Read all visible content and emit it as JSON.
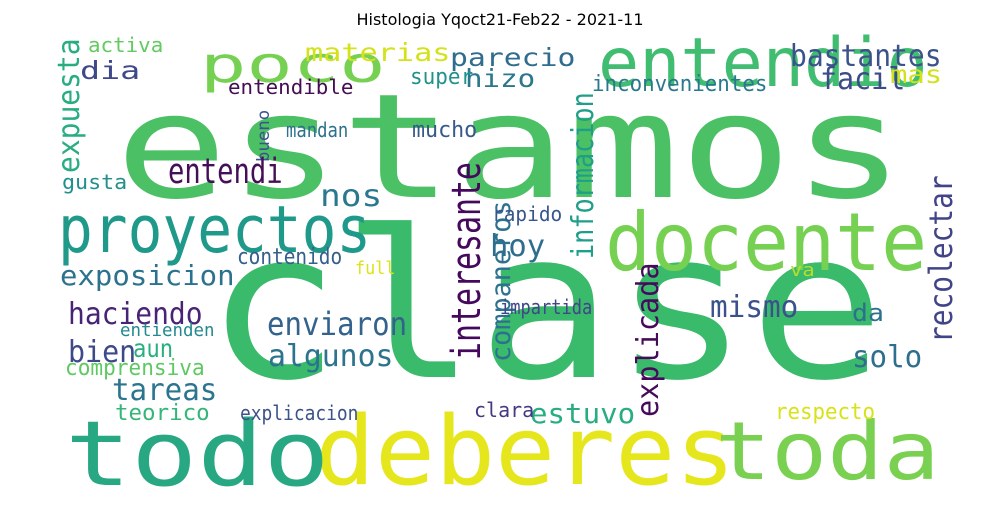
{
  "title": "Histologia Yqoct21-Feb22 - 2021-11",
  "words": [
    {
      "text": "estamos",
      "color": "#4cc064"
    },
    {
      "text": "clase",
      "color": "#3aba6b"
    },
    {
      "text": "deberes",
      "color": "#e6e61d"
    },
    {
      "text": "todo",
      "color": "#27a882"
    },
    {
      "text": "toda",
      "color": "#7ad151"
    },
    {
      "text": "docente",
      "color": "#76d153"
    },
    {
      "text": "proyectos",
      "color": "#1f9a8a"
    },
    {
      "text": "entendio",
      "color": "#40bd70"
    },
    {
      "text": "poco",
      "color": "#76d153"
    },
    {
      "text": "materias",
      "color": "#d4e21a"
    },
    {
      "text": "parecio",
      "color": "#2f6c8e"
    },
    {
      "text": "bastantes",
      "color": "#3b528b"
    },
    {
      "text": "dia",
      "color": "#3f4889"
    },
    {
      "text": "hizo",
      "color": "#2a778e"
    },
    {
      "text": "facil",
      "color": "#3e4a89"
    },
    {
      "text": "mas",
      "color": "#d2e21b"
    },
    {
      "text": "activa",
      "color": "#62cb5f"
    },
    {
      "text": "expuesta",
      "color": "#27ad81"
    },
    {
      "text": "entendible",
      "color": "#440d54"
    },
    {
      "text": "super",
      "color": "#21918c"
    },
    {
      "text": "inconvenientes",
      "color": "#2a788e"
    },
    {
      "text": "bueno",
      "color": "#3a538b"
    },
    {
      "text": "mandan",
      "color": "#2d718e"
    },
    {
      "text": "mucho",
      "color": "#38598c"
    },
    {
      "text": "informacion",
      "color": "#1f9e89"
    },
    {
      "text": "entendi",
      "color": "#440f56"
    },
    {
      "text": "gusta",
      "color": "#218f8d"
    },
    {
      "text": "nos",
      "color": "#2a788e"
    },
    {
      "text": "interesante",
      "color": "#46085c"
    },
    {
      "text": "companeros",
      "color": "#2c728e"
    },
    {
      "text": "recolectar",
      "color": "#414487"
    },
    {
      "text": "rapido",
      "color": "#39568c"
    },
    {
      "text": "hoy",
      "color": "#2e6d8e"
    },
    {
      "text": "exposicion",
      "color": "#2c728e"
    },
    {
      "text": "contenido",
      "color": "#35608d"
    },
    {
      "text": "full",
      "color": "#dde318"
    },
    {
      "text": "va",
      "color": "#b8de29"
    },
    {
      "text": "explicada",
      "color": "#460a5d"
    },
    {
      "text": "haciendo",
      "color": "#482475"
    },
    {
      "text": "enviaron",
      "color": "#33638d"
    },
    {
      "text": "mismo",
      "color": "#3b518b"
    },
    {
      "text": "impartida",
      "color": "#3f4788"
    },
    {
      "text": "da",
      "color": "#2d708e"
    },
    {
      "text": "entienden",
      "color": "#23898e"
    },
    {
      "text": "bien",
      "color": "#3e4989"
    },
    {
      "text": "aun",
      "color": "#29af7f"
    },
    {
      "text": "algunos",
      "color": "#2c738e"
    },
    {
      "text": "solo",
      "color": "#2e6e8e"
    },
    {
      "text": "comprensiva",
      "color": "#5ec962"
    },
    {
      "text": "tareas",
      "color": "#2b758e"
    },
    {
      "text": "estuvo",
      "color": "#27ad81"
    },
    {
      "text": "teorico",
      "color": "#34b679"
    },
    {
      "text": "explicacion",
      "color": "#3b528b"
    },
    {
      "text": "clara",
      "color": "#443983"
    },
    {
      "text": "respecto",
      "color": "#d8e219"
    }
  ]
}
